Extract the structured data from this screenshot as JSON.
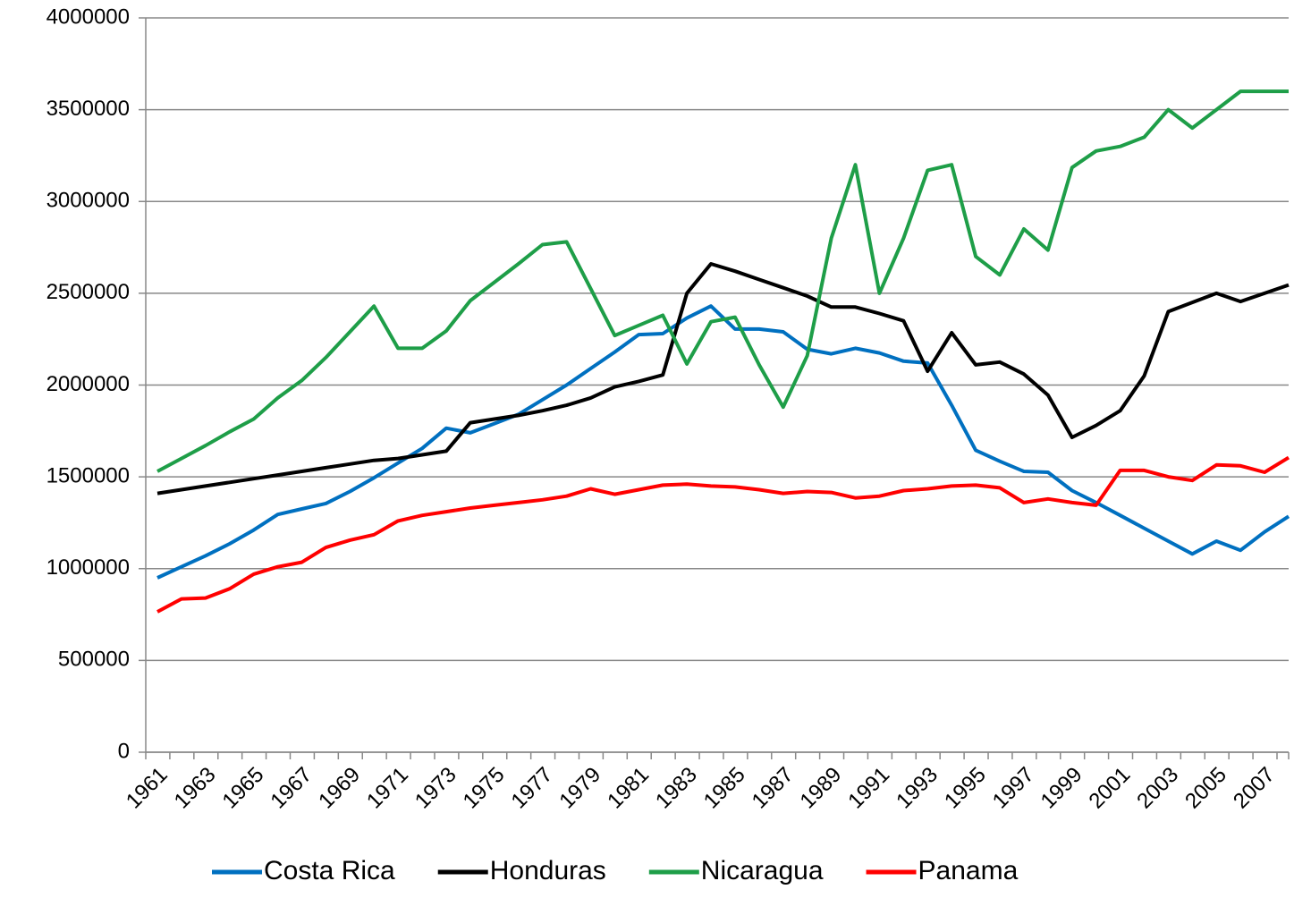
{
  "chart_data": {
    "type": "line",
    "categories": [
      "1961",
      null,
      "1963",
      null,
      "1965",
      null,
      "1967",
      null,
      "1969",
      null,
      "1971",
      null,
      "1973",
      null,
      "1975",
      null,
      "1977",
      null,
      "1979",
      null,
      "1981",
      null,
      "1983",
      null,
      "1985",
      null,
      "1987",
      null,
      "1989",
      null,
      "1991",
      null,
      "1993",
      null,
      "1995",
      null,
      "1997",
      null,
      "1999",
      null,
      "2001",
      null,
      "2003",
      null,
      "2005",
      null,
      "2007",
      null
    ],
    "series": [
      {
        "name": "Costa Rica",
        "color": "#0070c0",
        "values": [
          950000,
          1010000,
          1070000,
          1135000,
          1210000,
          1295000,
          1325000,
          1355000,
          1420000,
          1495000,
          1575000,
          1655000,
          1765000,
          1740000,
          1790000,
          1840000,
          1920000,
          2000000,
          2090000,
          2180000,
          2275000,
          2280000,
          2365000,
          2430000,
          2305000,
          2305000,
          2290000,
          2195000,
          2170000,
          2200000,
          2175000,
          2130000,
          2120000,
          1890000,
          1645000,
          1585000,
          1530000,
          1525000,
          1425000,
          1360000,
          1290000,
          1220000,
          1150000,
          1080000,
          1150000,
          1100000,
          1200000,
          1285000
        ]
      },
      {
        "name": "Honduras",
        "color": "#000000",
        "values": [
          1410000,
          1430000,
          1450000,
          1470000,
          1490000,
          1510000,
          1530000,
          1550000,
          1570000,
          1590000,
          1600000,
          1620000,
          1640000,
          1795000,
          1815000,
          1835000,
          1860000,
          1890000,
          1930000,
          1990000,
          2020000,
          2055000,
          2500000,
          2660000,
          2620000,
          2575000,
          2530000,
          2485000,
          2425000,
          2425000,
          2390000,
          2350000,
          2075000,
          2285000,
          2110000,
          2125000,
          2060000,
          1945000,
          1715000,
          1780000,
          1860000,
          2050000,
          2400000,
          2450000,
          2500000,
          2455000,
          2500000,
          2545000
        ]
      },
      {
        "name": "Nicaragua",
        "color": "#1e9e48",
        "values": [
          1530000,
          1600000,
          1670000,
          1745000,
          1815000,
          1930000,
          2025000,
          2150000,
          2290000,
          2430000,
          2200000,
          2200000,
          2295000,
          2460000,
          2560000,
          2660000,
          2765000,
          2780000,
          2525000,
          2270000,
          2325000,
          2380000,
          2115000,
          2345000,
          2370000,
          2110000,
          1880000,
          2160000,
          2800000,
          3200000,
          2500000,
          2800000,
          3170000,
          3200000,
          2700000,
          2600000,
          2850000,
          2735000,
          3185000,
          3275000,
          3300000,
          3350000,
          3500000,
          3400000,
          3500000,
          3600000,
          3600000,
          3600000
        ]
      },
      {
        "name": "Panama",
        "color": "#ff0000",
        "values": [
          765000,
          835000,
          840000,
          890000,
          970000,
          1010000,
          1035000,
          1115000,
          1155000,
          1185000,
          1260000,
          1290000,
          1310000,
          1330000,
          1345000,
          1360000,
          1375000,
          1395000,
          1435000,
          1405000,
          1430000,
          1455000,
          1460000,
          1450000,
          1445000,
          1430000,
          1410000,
          1420000,
          1415000,
          1385000,
          1395000,
          1425000,
          1435000,
          1450000,
          1455000,
          1440000,
          1360000,
          1380000,
          1360000,
          1345000,
          1535000,
          1535000,
          1500000,
          1480000,
          1565000,
          1560000,
          1525000,
          1605000
        ]
      }
    ],
    "ylim": [
      0,
      4000000
    ],
    "yticks": [
      0,
      500000,
      1000000,
      1500000,
      2000000,
      2500000,
      3000000,
      3500000,
      4000000
    ],
    "grid": true,
    "legend": "bottom"
  }
}
